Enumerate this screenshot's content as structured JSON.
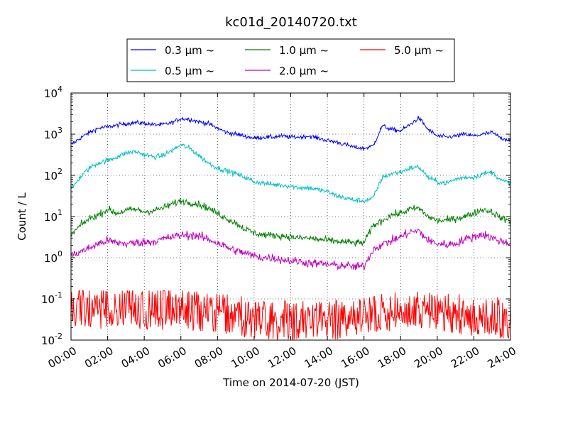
{
  "chart_data": {
    "type": "line",
    "title": "kc01d_20140720.txt",
    "xlabel": "Time on 2014-07-20 (JST)",
    "ylabel": "Count / L",
    "x_ticks": [
      "00:00",
      "02:00",
      "04:00",
      "06:00",
      "08:00",
      "10:00",
      "12:00",
      "14:00",
      "16:00",
      "18:00",
      "20:00",
      "22:00",
      "24:00"
    ],
    "xlim_hours": [
      0,
      24
    ],
    "y_scale": "log",
    "ylim": [
      0.01,
      10000
    ],
    "y_ticks": [
      {
        "base": "10",
        "exp": "-2",
        "value": 0.01
      },
      {
        "base": "10",
        "exp": "-1",
        "value": 0.1
      },
      {
        "base": "10",
        "exp": "0",
        "value": 1
      },
      {
        "base": "10",
        "exp": "1",
        "value": 10
      },
      {
        "base": "10",
        "exp": "2",
        "value": 100
      },
      {
        "base": "10",
        "exp": "3",
        "value": 1000
      },
      {
        "base": "10",
        "exp": "4",
        "value": 10000
      }
    ],
    "grid": true,
    "legend_position": "top-center",
    "series": [
      {
        "name": "0.3 μm ~",
        "color": "#0000ff",
        "x_hours": [
          0,
          0.5,
          1,
          1.5,
          2,
          2.5,
          3,
          3.5,
          4,
          4.5,
          5,
          5.5,
          6,
          6.5,
          7,
          7.5,
          8,
          8.5,
          9,
          9.5,
          10,
          10.5,
          11,
          11.5,
          12,
          12.5,
          13,
          13.5,
          14,
          14.5,
          15,
          15.5,
          16,
          16.5,
          17,
          17.5,
          18,
          18.5,
          19,
          19.5,
          20,
          20.5,
          21,
          21.5,
          22,
          22.5,
          23,
          23.5,
          24
        ],
        "values": [
          550,
          800,
          1100,
          1400,
          1500,
          1650,
          1800,
          1900,
          1850,
          1700,
          1700,
          1900,
          2400,
          2300,
          2000,
          1800,
          1400,
          1100,
          1000,
          900,
          800,
          850,
          850,
          900,
          850,
          850,
          900,
          800,
          700,
          650,
          550,
          480,
          450,
          520,
          1600,
          1300,
          1200,
          1700,
          2500,
          1300,
          900,
          850,
          900,
          1000,
          900,
          1000,
          1100,
          800,
          720
        ],
        "noise": 0.05
      },
      {
        "name": "0.5 μm ~",
        "color": "#00bfbf",
        "x_hours": [
          0,
          0.5,
          1,
          1.5,
          2,
          2.5,
          3,
          3.5,
          4,
          4.5,
          5,
          5.5,
          6,
          6.5,
          7,
          7.5,
          8,
          8.5,
          9,
          9.5,
          10,
          10.5,
          11,
          11.5,
          12,
          12.5,
          13,
          13.5,
          14,
          14.5,
          15,
          15.5,
          16,
          16.5,
          17,
          17.5,
          18,
          18.5,
          19,
          19.5,
          20,
          20.5,
          21,
          21.5,
          22,
          22.5,
          23,
          23.5,
          24
        ],
        "values": [
          45,
          90,
          150,
          200,
          230,
          280,
          350,
          380,
          320,
          280,
          300,
          400,
          550,
          450,
          300,
          200,
          150,
          130,
          110,
          90,
          70,
          65,
          60,
          58,
          55,
          50,
          50,
          45,
          40,
          32,
          28,
          25,
          24,
          28,
          90,
          110,
          120,
          150,
          160,
          90,
          70,
          65,
          80,
          90,
          90,
          110,
          120,
          75,
          65
        ],
        "noise": 0.06
      },
      {
        "name": "1.0 μm ~",
        "color": "#008000",
        "x_hours": [
          0,
          0.5,
          1,
          1.5,
          2,
          2.5,
          3,
          3.5,
          4,
          4.5,
          5,
          5.5,
          6,
          6.5,
          7,
          7.5,
          8,
          8.5,
          9,
          9.5,
          10,
          10.5,
          11,
          11.5,
          12,
          12.5,
          13,
          13.5,
          14,
          14.5,
          15,
          15.5,
          16,
          16.5,
          17,
          17.5,
          18,
          18.5,
          19,
          19.5,
          20,
          20.5,
          21,
          21.5,
          22,
          22.5,
          23,
          23.5,
          24
        ],
        "values": [
          3.5,
          6,
          9,
          11,
          15,
          12,
          14,
          15,
          13,
          14,
          16,
          20,
          24,
          22,
          20,
          16,
          12,
          9,
          7,
          5,
          4,
          3.6,
          3.5,
          3.4,
          3.2,
          3,
          3,
          2.8,
          2.6,
          2.5,
          2.4,
          2.3,
          2.3,
          6,
          8,
          11,
          12,
          15,
          16,
          10,
          8,
          8,
          9,
          10,
          12,
          15,
          13,
          9,
          8
        ],
        "noise": 0.08
      },
      {
        "name": "2.0 μm ~",
        "color": "#bf00bf",
        "x_hours": [
          0,
          0.5,
          1,
          1.5,
          2,
          2.5,
          3,
          3.5,
          4,
          4.5,
          5,
          5.5,
          6,
          6.5,
          7,
          7.5,
          8,
          8.5,
          9,
          9.5,
          10,
          10.5,
          11,
          11.5,
          12,
          12.5,
          13,
          13.5,
          14,
          14.5,
          15,
          15.5,
          16,
          16.5,
          17,
          17.5,
          18,
          18.5,
          19,
          19.5,
          20,
          20.5,
          21,
          21.5,
          22,
          22.5,
          23,
          23.5,
          24
        ],
        "values": [
          1.1,
          1.4,
          1.7,
          2.2,
          2.6,
          2.3,
          2.2,
          2.3,
          2.4,
          2.5,
          2.8,
          3.2,
          3.5,
          3.6,
          3.3,
          2.8,
          2.3,
          1.8,
          1.5,
          1.3,
          1.1,
          1.0,
          1.0,
          0.9,
          0.85,
          0.8,
          0.75,
          0.72,
          0.7,
          0.65,
          0.65,
          0.6,
          0.62,
          1.6,
          2.1,
          2.6,
          3.2,
          4.2,
          4.5,
          2.6,
          2.2,
          2.1,
          2.2,
          2.8,
          3.2,
          3.8,
          3.0,
          2.5,
          2.3
        ],
        "noise": 0.1
      },
      {
        "name": "5.0 μm ~",
        "color": "#ff0000",
        "x_hours": [
          0,
          2,
          4,
          6,
          8,
          10,
          12,
          14,
          16,
          18,
          20,
          22,
          24
        ],
        "values": [
          0.06,
          0.05,
          0.05,
          0.05,
          0.04,
          0.03,
          0.025,
          0.025,
          0.03,
          0.05,
          0.04,
          0.035,
          0.03
        ],
        "noise": 0.35
      }
    ]
  }
}
